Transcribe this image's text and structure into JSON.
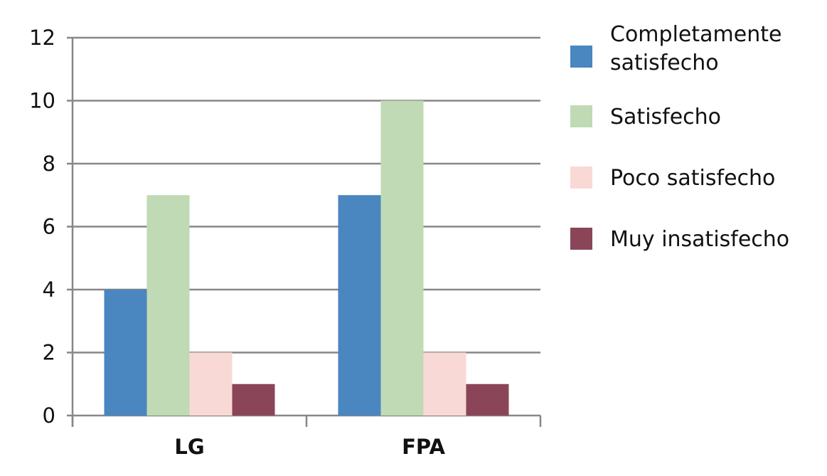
{
  "chart_data": {
    "type": "bar",
    "categories": [
      "LG",
      "FPA"
    ],
    "series": [
      {
        "name": "Completamente satisfecho",
        "name_lines": [
          "Completamente",
          "satisfecho"
        ],
        "values": [
          4,
          7
        ],
        "color": "#4a86bf"
      },
      {
        "name": "Satisfecho",
        "name_lines": [
          "Satisfecho"
        ],
        "values": [
          7,
          10
        ],
        "color": "#bfdab5"
      },
      {
        "name": "Poco satisfecho",
        "name_lines": [
          "Poco satisfecho"
        ],
        "values": [
          2,
          2
        ],
        "color": "#f9d9d5"
      },
      {
        "name": "Muy insatisfecho",
        "name_lines": [
          "Muy insatisfecho"
        ],
        "values": [
          1,
          1
        ],
        "color": "#8b4558"
      }
    ],
    "yticks": [
      "0",
      "2",
      "4",
      "6",
      "8",
      "10",
      "12"
    ],
    "ylim": [
      0,
      12
    ],
    "grid": true,
    "legend": "right",
    "title": "",
    "xlabel": "",
    "ylabel": ""
  }
}
